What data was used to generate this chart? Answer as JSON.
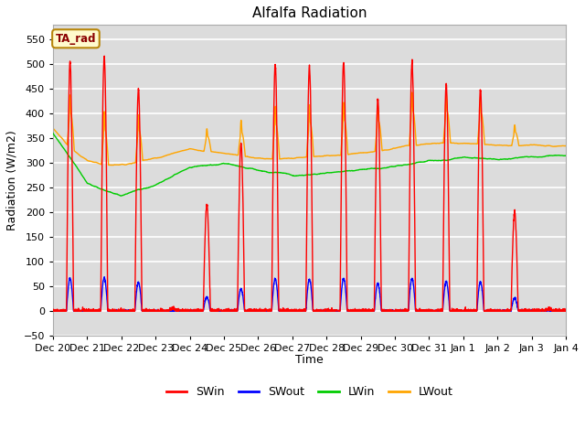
{
  "title": "Alfalfa Radiation",
  "xlabel": "Time",
  "ylabel": "Radiation (W/m2)",
  "ylim": [
    -50,
    580
  ],
  "annotation_text": "TA_rad",
  "annotation_color": "#8B0000",
  "annotation_bg": "#FFFACD",
  "annotation_border": "#B8860B",
  "background_color": "#DCDCDC",
  "grid_color": "white",
  "series": {
    "SWin": {
      "color": "#FF0000",
      "lw": 1.0
    },
    "SWout": {
      "color": "#0000FF",
      "lw": 1.0
    },
    "LWin": {
      "color": "#00CC00",
      "lw": 1.0
    },
    "LWout": {
      "color": "#FFA500",
      "lw": 1.0
    }
  },
  "tick_labels": [
    "Dec 20",
    "Dec 21",
    "Dec 22",
    "Dec 23",
    "Dec 24",
    "Dec 25",
    "Dec 26",
    "Dec 27",
    "Dec 28",
    "Dec 29",
    "Dec 30",
    "Dec 31",
    "Jan 1",
    "Jan 2",
    "Jan 3",
    "Jan 4"
  ],
  "yticks": [
    -50,
    0,
    50,
    100,
    150,
    200,
    250,
    300,
    350,
    400,
    450,
    500,
    550
  ],
  "legend_entries": [
    "SWin",
    "SWout",
    "LWin",
    "LWout"
  ],
  "legend_colors": [
    "#FF0000",
    "#0000FF",
    "#00CC00",
    "#FFA500"
  ],
  "day_peaks_SWin": [
    505,
    515,
    450,
    5,
    215,
    340,
    500,
    495,
    505,
    430,
    505,
    460,
    450,
    200,
    5
  ],
  "lwin_knots_x": [
    0,
    0.5,
    1,
    1.5,
    2,
    3,
    4,
    5,
    6,
    7,
    8,
    9,
    10,
    11,
    12,
    13,
    14,
    15
  ],
  "lwin_knots_y": [
    360,
    310,
    260,
    245,
    235,
    255,
    290,
    300,
    285,
    275,
    280,
    285,
    295,
    305,
    310,
    308,
    312,
    315
  ],
  "lwout_knots_y": [
    370,
    330,
    305,
    295,
    295,
    310,
    330,
    320,
    310,
    310,
    315,
    320,
    330,
    340,
    340,
    335,
    335,
    335
  ]
}
